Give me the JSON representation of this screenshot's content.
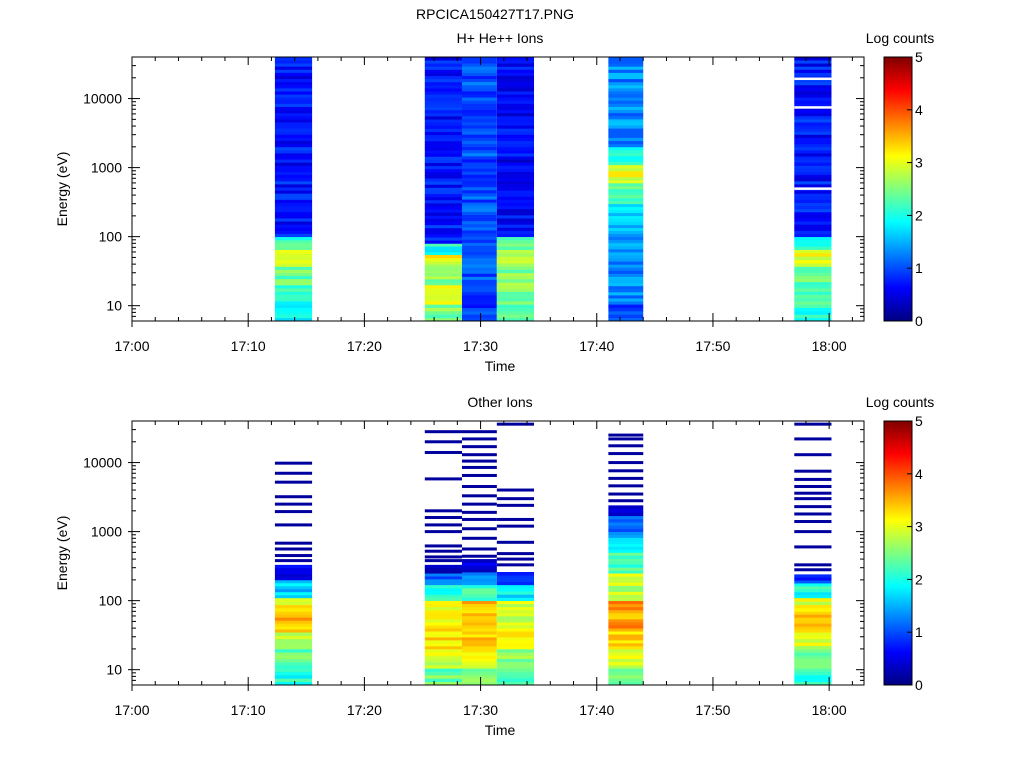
{
  "figure": {
    "title": "RPCICA150427T17.PNG"
  },
  "colormap": {
    "stops": [
      "#00007f",
      "#0000ff",
      "#007fff",
      "#00ffff",
      "#7fff7f",
      "#ffff00",
      "#ff7f00",
      "#ff0000",
      "#7f0000"
    ]
  },
  "chart_data": [
    {
      "type": "heatmap",
      "title": "H+ He++ Ions",
      "xlabel": "Time",
      "ylabel": "Energy (eV)",
      "yscale": "log",
      "ylim": [
        6,
        40000
      ],
      "xlim": [
        "17:00",
        "18:03"
      ],
      "xticks": [
        "17:00",
        "17:10",
        "17:20",
        "17:30",
        "17:40",
        "17:50",
        "18:00"
      ],
      "yticks": [
        10,
        100,
        1000,
        10000
      ],
      "colorbar": {
        "label": "Log counts",
        "range": [
          0,
          5
        ],
        "ticks": [
          0,
          1,
          2,
          3,
          4,
          5
        ]
      },
      "columns": [
        {
          "start": "17:12.3",
          "end": "17:15.5",
          "profile": [
            [
              6,
              10.5,
              1.9
            ],
            [
              10.5,
              20,
              2.1
            ],
            [
              20,
              37,
              2.4
            ],
            [
              37,
              65,
              3.0
            ],
            [
              65,
              100,
              2.2
            ],
            [
              100,
              40000,
              0.7
            ]
          ],
          "gaps": []
        },
        {
          "start": "17:25.2",
          "end": "17:28.4",
          "profile": [
            [
              6,
              10.5,
              2.5
            ],
            [
              10.5,
              20,
              2.9
            ],
            [
              20,
              40,
              2.5
            ],
            [
              40,
              55,
              3.1
            ],
            [
              55,
              80,
              2.0
            ],
            [
              80,
              40000,
              0.7
            ]
          ],
          "gaps": []
        },
        {
          "start": "17:28.4",
          "end": "17:31.4",
          "profile": [
            [
              6,
              10.5,
              0.9
            ],
            [
              10.5,
              40000,
              1.0
            ]
          ],
          "gaps": []
        },
        {
          "start": "17:31.4",
          "end": "17:34.6",
          "profile": [
            [
              6,
              10.5,
              2.2
            ],
            [
              10.5,
              37,
              2.5
            ],
            [
              37,
              65,
              2.9
            ],
            [
              65,
              100,
              2.4
            ],
            [
              100,
              40000,
              0.6
            ]
          ],
          "gaps": []
        },
        {
          "start": "17:41.0",
          "end": "17:44.0",
          "profile": [
            [
              6,
              10.5,
              1.0
            ],
            [
              10.5,
              100,
              1.3
            ],
            [
              100,
              300,
              1.6
            ],
            [
              300,
              600,
              2.2
            ],
            [
              600,
              1100,
              3.0
            ],
            [
              1100,
              2000,
              2.1
            ],
            [
              2000,
              40000,
              1.3
            ]
          ],
          "gaps": []
        },
        {
          "start": "17:57.0",
          "end": "18:00.2",
          "profile": [
            [
              6,
              10.5,
              2.0
            ],
            [
              10.5,
              20,
              2.2
            ],
            [
              20,
              37,
              2.3
            ],
            [
              37,
              65,
              3.0
            ],
            [
              65,
              100,
              2.1
            ],
            [
              100,
              40000,
              0.7
            ]
          ],
          "gaps": [
            500,
            7500,
            19500
          ]
        }
      ]
    },
    {
      "type": "heatmap",
      "title": "Other Ions",
      "xlabel": "Time",
      "ylabel": "Energy (eV)",
      "yscale": "log",
      "ylim": [
        6,
        40000
      ],
      "xlim": [
        "17:00",
        "18:03"
      ],
      "xticks": [
        "17:00",
        "17:10",
        "17:20",
        "17:30",
        "17:40",
        "17:50",
        "18:00"
      ],
      "yticks": [
        10,
        100,
        1000,
        10000
      ],
      "colorbar": {
        "label": "Log counts",
        "range": [
          0,
          5
        ],
        "ticks": [
          0,
          1,
          2,
          3,
          4,
          5
        ]
      },
      "columns": [
        {
          "start": "17:12.3",
          "end": "17:15.5",
          "profile": [
            [
              6,
              10.5,
              2.0
            ],
            [
              10.5,
              20,
              2.4
            ],
            [
              20,
              35,
              2.9
            ],
            [
              35,
              70,
              3.5
            ],
            [
              70,
              110,
              3.1
            ],
            [
              110,
              200,
              1.6
            ],
            [
              200,
              330,
              0.5
            ]
          ],
          "lines": [
            380,
            450,
            560,
            680,
            1250,
            1950,
            2500,
            3200,
            5200,
            7000,
            9800
          ]
        },
        {
          "start": "17:25.2",
          "end": "17:28.4",
          "profile": [
            [
              6,
              10.5,
              2.4
            ],
            [
              10.5,
              20,
              2.9
            ],
            [
              20,
              40,
              3.3
            ],
            [
              40,
              100,
              3.1
            ],
            [
              100,
              170,
              2.0
            ],
            [
              170,
              250,
              1.1
            ],
            [
              250,
              330,
              0.5
            ]
          ],
          "lines": [
            380,
            430,
            520,
            620,
            1000,
            1250,
            1600,
            2000,
            5800,
            14000,
            20000,
            28000
          ]
        },
        {
          "start": "17:28.4",
          "end": "17:31.4",
          "profile": [
            [
              6,
              10.5,
              2.5
            ],
            [
              10.5,
              20,
              3.0
            ],
            [
              20,
              40,
              3.4
            ],
            [
              40,
              100,
              3.4
            ],
            [
              100,
              170,
              2.2
            ],
            [
              170,
              260,
              1.2
            ],
            [
              260,
              400,
              0.5
            ]
          ],
          "lines": [
            440,
            560,
            800,
            1100,
            1500,
            1900,
            2500,
            3300,
            4500,
            6500,
            8500,
            10500,
            13000,
            17000,
            22000,
            28000
          ]
        },
        {
          "start": "17:31.4",
          "end": "17:34.6",
          "profile": [
            [
              6,
              10.5,
              2.2
            ],
            [
              10.5,
              20,
              2.6
            ],
            [
              20,
              40,
              3.2
            ],
            [
              40,
              100,
              2.8
            ],
            [
              100,
              170,
              1.8
            ],
            [
              170,
              260,
              0.8
            ]
          ],
          "lines": [
            330,
            400,
            480,
            700,
            1200,
            1500,
            2400,
            3000,
            4000,
            36000
          ]
        },
        {
          "start": "17:41.0",
          "end": "17:44.0",
          "profile": [
            [
              6,
              10.5,
              2.4
            ],
            [
              10.5,
              20,
              3.0
            ],
            [
              20,
              40,
              3.4
            ],
            [
              40,
              100,
              3.6
            ],
            [
              100,
              250,
              2.8
            ],
            [
              250,
              500,
              2.2
            ],
            [
              500,
              1000,
              1.6
            ],
            [
              1000,
              1700,
              1.0
            ],
            [
              1700,
              2400,
              0.5
            ]
          ],
          "lines": [
            2800,
            3500,
            4600,
            5900,
            7600,
            10000,
            13500,
            17500,
            22000,
            25000
          ]
        },
        {
          "start": "17:57.0",
          "end": "18:00.2",
          "profile": [
            [
              6,
              10.5,
              2.0
            ],
            [
              10.5,
              20,
              2.4
            ],
            [
              20,
              35,
              2.9
            ],
            [
              35,
              70,
              3.4
            ],
            [
              70,
              110,
              3.0
            ],
            [
              110,
              180,
              2.0
            ],
            [
              180,
              240,
              0.9
            ]
          ],
          "lines": [
            280,
            330,
            600,
            1000,
            1400,
            1800,
            2300,
            3000,
            3600,
            4500,
            5700,
            7500,
            13000,
            22000,
            36000
          ]
        }
      ]
    }
  ]
}
